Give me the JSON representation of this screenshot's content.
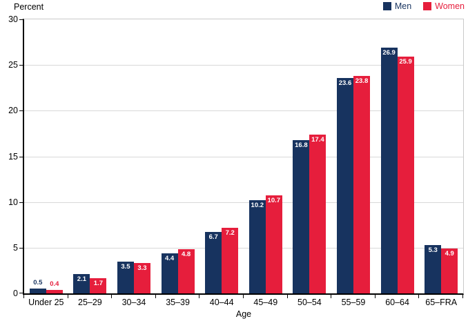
{
  "chart_data": {
    "type": "bar",
    "title": "",
    "ylabel": "Percent",
    "xlabel": "Age",
    "ylim": [
      0,
      30
    ],
    "yticks": [
      0,
      5,
      10,
      15,
      20,
      25,
      30
    ],
    "grid": true,
    "legend_position": "top-right",
    "categories": [
      "Under 25",
      "25–29",
      "30–34",
      "35–39",
      "40–44",
      "45–49",
      "50–54",
      "55–59",
      "60–64",
      "65–FRA"
    ],
    "series": [
      {
        "name": "Men",
        "color": "#17335F",
        "values": [
          0.5,
          2.1,
          3.5,
          4.4,
          6.7,
          10.2,
          16.8,
          23.6,
          26.9,
          5.3
        ]
      },
      {
        "name": "Women",
        "color": "#E61E3C",
        "values": [
          0.4,
          1.7,
          3.3,
          4.8,
          7.2,
          10.7,
          17.4,
          23.8,
          25.9,
          4.9
        ]
      }
    ]
  },
  "colors": {
    "grid": "#D8D8D8",
    "plot_border": "#C9C9C9",
    "axis": "#000000",
    "value_label_inside": "#FFFFFF"
  }
}
